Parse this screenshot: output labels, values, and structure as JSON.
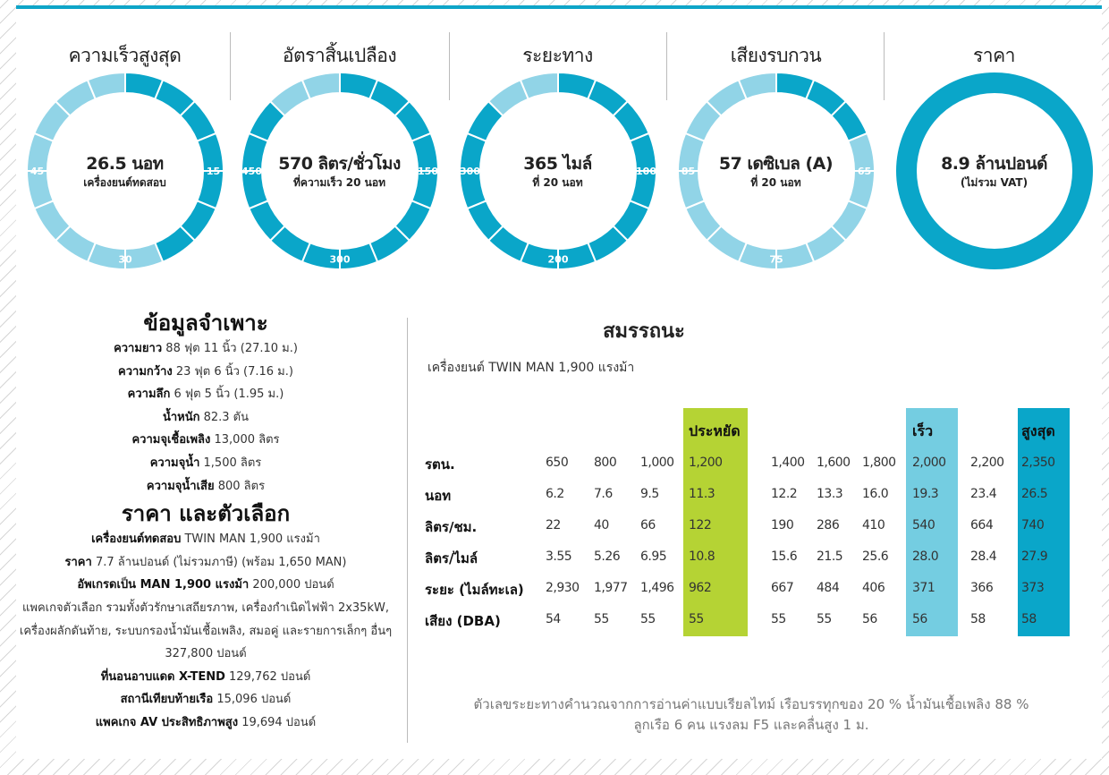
{
  "colors": {
    "accent": "#0ea5c8",
    "gauge_filled": "#0aa6c9",
    "gauge_empty": "#91d4e7",
    "economy": "#b5d334",
    "fast": "#74cde1",
    "max": "#0aa6c9"
  },
  "gauges": [
    {
      "title": "ความเร็วสูงสุด",
      "value": "26.5 นอท",
      "sub": "เครื่องยนต์ทดสอบ",
      "ticks": [
        "15",
        "30",
        "45"
      ],
      "fill_fraction": 0.4375
    },
    {
      "title": "อัตราสิ้นเปลือง",
      "value": "570 ลิตร/ชั่วโมง",
      "sub": "ที่ความเร็ว 20 นอท",
      "ticks": [
        "150",
        "300",
        "450"
      ],
      "fill_fraction": 0.875
    },
    {
      "title": "ระยะทาง",
      "value": "365 ไมล์",
      "sub": "ที่ 20 นอท",
      "ticks": [
        "100",
        "200",
        "300"
      ],
      "fill_fraction": 0.875
    },
    {
      "title": "เสียงรบกวน",
      "value": "57 เดซิเบล (A)",
      "sub": "ที่ 20 นอท",
      "ticks": [
        "65",
        "75",
        "85"
      ],
      "fill_fraction": 0.1875
    },
    {
      "title": "ราคา",
      "value": "8.9 ล้านปอนด์",
      "sub": "(ไม่รวม VAT)",
      "ticks": [],
      "fill_fraction": 1
    }
  ],
  "specs": {
    "title": "ข้อมูลจำเพาะ",
    "items": [
      {
        "k": "ความยาว",
        "v": "88 ฟุต 11 นิ้ว (27.10 ม.)"
      },
      {
        "k": "ความกว้าง",
        "v": "23 ฟุต 6 นิ้ว (7.16 ม.)"
      },
      {
        "k": "ความลึก",
        "v": "6 ฟุต 5 นิ้ว (1.95 ม.)"
      },
      {
        "k": "น้ำหนัก",
        "v": "82.3 ตัน"
      },
      {
        "k": "ความจุเชื้อเพลิง",
        "v": "13,000 ลิตร"
      },
      {
        "k": "ความจุน้ำ",
        "v": "1,500 ลิตร"
      },
      {
        "k": "ความจุน้ำเสีย",
        "v": "800 ลิตร"
      }
    ],
    "price_title": "ราคา และตัวเลือก",
    "price_items": [
      {
        "k": "เครื่องยนต์ทดสอบ",
        "v": "TWIN MAN 1,900 แรงม้า"
      },
      {
        "k": "ราคา",
        "v": "7.7 ล้านปอนด์ (ไม่รวมภาษี) (พร้อม 1,650 MAN)"
      },
      {
        "k": "อัพเกรดเป็น MAN 1,900 แรงม้า",
        "v": "200,000 ปอนด์"
      },
      {
        "k": "",
        "v": "แพคเกจตัวเลือก รวมทั้งตัวรักษาเสถียรภาพ, เครื่องกำเนิดไฟฟ้า 2x35kW, เครื่องผลักดันท้าย, ระบบกรองน้ำมันเชื้อเพลิง, สมอคู่ และรายการเล็กๆ อื่นๆ 327,800 ปอนด์"
      },
      {
        "k": "ที่นอนอาบแดด X-TEND",
        "v": "129,762 ปอนด์"
      },
      {
        "k": "สถานีเทียบท้ายเรือ",
        "v": "15,096 ปอนด์"
      },
      {
        "k": "แพคเกจ AV ประสิทธิภาพสูง",
        "v": "19,694 ปอนด์"
      }
    ]
  },
  "performance": {
    "title": "สมรรถนะ",
    "subtitle": "เครื่องยนต์ TWIN MAN 1,900 แรงม้า",
    "column_headers": [
      "",
      "",
      "",
      "ประหยัด",
      "",
      "",
      "",
      "เร็ว",
      "",
      "สูงสุด"
    ],
    "rows": [
      {
        "label": "รตน.",
        "values": [
          "650",
          "800",
          "1,000",
          "1,200",
          "1,400",
          "1,600",
          "1,800",
          "2,000",
          "2,200",
          "2,350"
        ]
      },
      {
        "label": "นอท",
        "values": [
          "6.2",
          "7.6",
          "9.5",
          "11.3",
          "12.2",
          "13.3",
          "16.0",
          "19.3",
          "23.4",
          "26.5"
        ]
      },
      {
        "label": "ลิตร/ชม.",
        "values": [
          "22",
          "40",
          "66",
          "122",
          "190",
          "286",
          "410",
          "540",
          "664",
          "740"
        ]
      },
      {
        "label": "ลิตร/ไมล์",
        "values": [
          "3.55",
          "5.26",
          "6.95",
          "10.8",
          "15.6",
          "21.5",
          "25.6",
          "28.0",
          "28.4",
          "27.9"
        ]
      },
      {
        "label": "ระยะ (ไมล์ทะเล)",
        "values": [
          "2,930",
          "1,977",
          "1,496",
          "962",
          "667",
          "484",
          "406",
          "371",
          "366",
          "373"
        ]
      },
      {
        "label": "เสียง (DBA)",
        "values": [
          "54",
          "55",
          "55",
          "55",
          "55",
          "55",
          "56",
          "56",
          "58",
          "58"
        ]
      }
    ],
    "note": [
      "ตัวเลขระยะทางคำนวณจากการอ่านค่าแบบเรียลไทม์ เรือบรรทุกของ 20 % น้ำมันเชื้อเพลิง 88 %",
      "ลูกเรือ 6 คน แรงลม F5 และคลื่นสูง 1 ม."
    ]
  }
}
